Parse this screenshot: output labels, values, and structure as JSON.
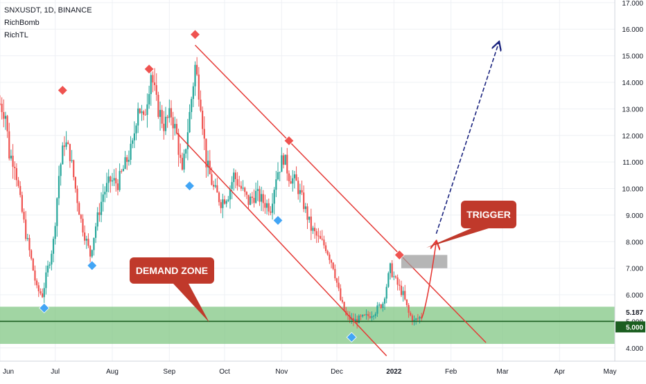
{
  "legend": {
    "symbol": "SNXUSDT, 1D, BINANCE",
    "indicator_1": "RichBomb",
    "indicator_2": "RichTL"
  },
  "callouts": {
    "demand": "DEMAND ZONE",
    "trigger": "TRIGGER"
  },
  "price_tags": {
    "last": "5.187",
    "level": "5.000"
  },
  "colors": {
    "up": "#26a69a",
    "down": "#ef5350",
    "channel": "#e53935",
    "demand_fill": "#81c784",
    "callout_bg": "#c0392b",
    "projection": "#1a237e",
    "signal_top": "#ef5350",
    "signal_bottom": "#42a5f5"
  },
  "chart_data": {
    "type": "candlestick",
    "title": "SNXUSDT, 1D, BINANCE",
    "y_ticks": [
      "4.000",
      "5.000",
      "6.000",
      "7.000",
      "8.000",
      "9.000",
      "10.000",
      "11.000",
      "12.000",
      "13.000",
      "14.000",
      "15.000",
      "16.000",
      "17.000"
    ],
    "x_ticks": [
      "Jun",
      "Jul",
      "Aug",
      "Sep",
      "Oct",
      "Nov",
      "Dec",
      "2022",
      "Feb",
      "Mar",
      "Apr",
      "May"
    ],
    "ylim": [
      3.5,
      17.1
    ],
    "xlim": [
      "2021-06-01",
      "2022-05-01"
    ],
    "price_points": [
      [
        "2021-06-01",
        13.2
      ],
      [
        "2021-06-04",
        12.8
      ],
      [
        "2021-06-06",
        11.3
      ],
      [
        "2021-06-09",
        11.0
      ],
      [
        "2021-06-12",
        9.5
      ],
      [
        "2021-06-15",
        8.3
      ],
      [
        "2021-06-18",
        7.3
      ],
      [
        "2021-06-21",
        6.2
      ],
      [
        "2021-06-24",
        6.0
      ],
      [
        "2021-06-27",
        7.0
      ],
      [
        "2021-06-30",
        8.0
      ],
      [
        "2021-07-03",
        10.5
      ],
      [
        "2021-07-06",
        11.8
      ],
      [
        "2021-07-09",
        11.3
      ],
      [
        "2021-07-12",
        10.0
      ],
      [
        "2021-07-15",
        8.8
      ],
      [
        "2021-07-18",
        8.0
      ],
      [
        "2021-07-20",
        7.5
      ],
      [
        "2021-07-23",
        8.6
      ],
      [
        "2021-07-27",
        9.8
      ],
      [
        "2021-07-31",
        10.3
      ],
      [
        "2021-08-04",
        10.2
      ],
      [
        "2021-08-08",
        10.9
      ],
      [
        "2021-08-12",
        11.6
      ],
      [
        "2021-08-15",
        13.2
      ],
      [
        "2021-08-18",
        12.5
      ],
      [
        "2021-08-22",
        14.4
      ],
      [
        "2021-08-25",
        13.2
      ],
      [
        "2021-08-29",
        12.4
      ],
      [
        "2021-09-02",
        12.8
      ],
      [
        "2021-09-05",
        12.0
      ],
      [
        "2021-09-08",
        10.5
      ],
      [
        "2021-09-12",
        12.8
      ],
      [
        "2021-09-15",
        14.6
      ],
      [
        "2021-09-18",
        13.3
      ],
      [
        "2021-09-21",
        11.0
      ],
      [
        "2021-09-25",
        10.0
      ],
      [
        "2021-09-29",
        9.5
      ],
      [
        "2021-10-03",
        9.8
      ],
      [
        "2021-10-06",
        10.5
      ],
      [
        "2021-10-10",
        10.0
      ],
      [
        "2021-10-14",
        9.5
      ],
      [
        "2021-10-18",
        9.8
      ],
      [
        "2021-10-22",
        9.5
      ],
      [
        "2021-10-26",
        9.3
      ],
      [
        "2021-10-29",
        10.5
      ],
      [
        "2021-11-02",
        11.2
      ],
      [
        "2021-11-05",
        10.5
      ],
      [
        "2021-11-09",
        10.2
      ],
      [
        "2021-11-13",
        9.4
      ],
      [
        "2021-11-17",
        8.5
      ],
      [
        "2021-11-21",
        8.1
      ],
      [
        "2021-11-25",
        7.8
      ],
      [
        "2021-11-29",
        7.1
      ],
      [
        "2021-12-03",
        5.8
      ],
      [
        "2021-12-06",
        5.2
      ],
      [
        "2021-12-10",
        5.0
      ],
      [
        "2021-12-14",
        5.1
      ],
      [
        "2021-12-18",
        5.2
      ],
      [
        "2021-12-22",
        5.4
      ],
      [
        "2021-12-26",
        5.7
      ],
      [
        "2021-12-30",
        7.0
      ],
      [
        "2022-01-02",
        6.5
      ],
      [
        "2022-01-06",
        6.0
      ],
      [
        "2022-01-09",
        5.3
      ],
      [
        "2022-01-12",
        5.0
      ],
      [
        "2022-01-16",
        5.2
      ]
    ],
    "demand_zone": [
      4.15,
      5.55
    ],
    "horizontal_level": 5.0,
    "resistance_box": {
      "x": [
        "2022-01-05",
        "2022-01-30"
      ],
      "y": [
        7.0,
        7.5
      ]
    },
    "channel_upper": [
      [
        "2021-09-15",
        15.4
      ],
      [
        "2022-02-20",
        4.2
      ]
    ],
    "channel_lower": [
      [
        "2021-09-05",
        12.1
      ],
      [
        "2021-12-28",
        3.7
      ]
    ],
    "signals_top": [
      [
        "2021-07-05",
        13.7
      ],
      [
        "2021-08-21",
        14.5
      ],
      [
        "2021-09-15",
        15.8
      ],
      [
        "2021-11-05",
        11.8
      ],
      [
        "2022-01-04",
        7.5
      ]
    ],
    "signals_bottom": [
      [
        "2021-06-25",
        5.5
      ],
      [
        "2021-07-21",
        7.1
      ],
      [
        "2021-09-12",
        10.1
      ],
      [
        "2021-10-30",
        8.8
      ],
      [
        "2021-12-09",
        4.4
      ]
    ],
    "projection_short": [
      [
        "2022-01-16",
        5.1
      ],
      [
        "2022-01-24",
        8.0
      ]
    ],
    "projection_long": [
      [
        "2022-01-24",
        8.3
      ],
      [
        "2022-02-27",
        15.5
      ]
    ]
  }
}
